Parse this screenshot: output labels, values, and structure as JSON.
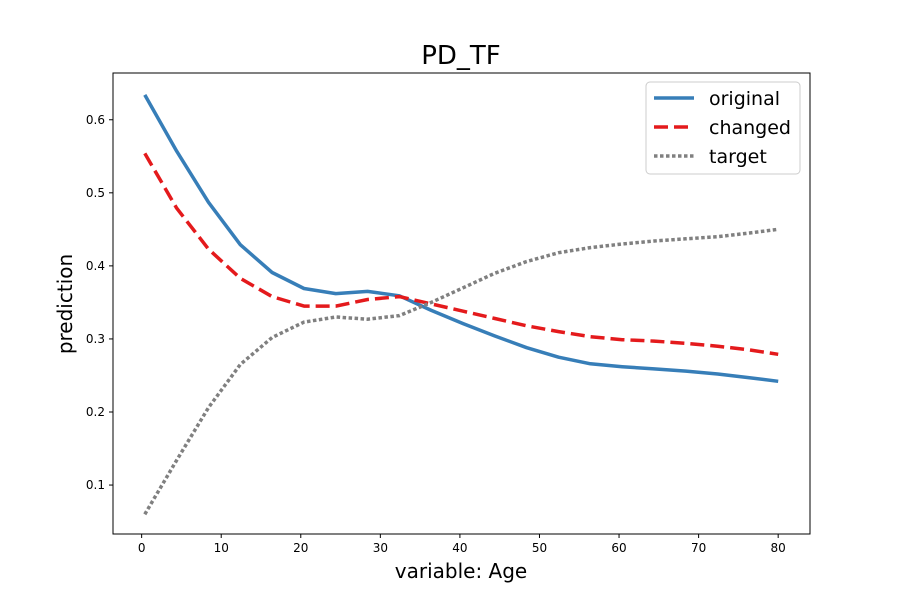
{
  "chart_data": {
    "type": "line",
    "title": "PD_TF",
    "xlabel": "variable: Age",
    "ylabel": "prediction",
    "xlim": [
      -3.6,
      84.0
    ],
    "ylim": [
      0.033,
      0.664
    ],
    "xticks": [
      0,
      10,
      20,
      30,
      40,
      50,
      60,
      70,
      80
    ],
    "yticks": [
      0.1,
      0.2,
      0.3,
      0.4,
      0.5,
      0.6
    ],
    "grid": false,
    "legend_position": "top-right",
    "series": [
      {
        "name": "original",
        "color": "#377eb8",
        "style": "solid",
        "x": [
          0.4,
          4.4,
          8.4,
          12.4,
          16.4,
          20.4,
          24.4,
          28.4,
          32.4,
          36.4,
          40.4,
          44.4,
          48.4,
          52.4,
          56.4,
          60.4,
          64.4,
          68.4,
          72.4,
          76.4,
          80.0
        ],
        "y": [
          0.634,
          0.557,
          0.487,
          0.429,
          0.391,
          0.369,
          0.362,
          0.365,
          0.359,
          0.339,
          0.321,
          0.304,
          0.288,
          0.275,
          0.266,
          0.262,
          0.259,
          0.256,
          0.252,
          0.247,
          0.242
        ]
      },
      {
        "name": "changed",
        "color": "#e41a1c",
        "style": "dashed",
        "x": [
          0.4,
          4.4,
          8.4,
          12.4,
          16.4,
          20.4,
          24.4,
          28.4,
          32.4,
          36.4,
          40.4,
          44.4,
          48.4,
          52.4,
          56.4,
          60.4,
          64.4,
          68.4,
          72.4,
          76.4,
          80.0
        ],
        "y": [
          0.554,
          0.479,
          0.423,
          0.383,
          0.358,
          0.345,
          0.345,
          0.354,
          0.358,
          0.348,
          0.338,
          0.328,
          0.318,
          0.31,
          0.303,
          0.299,
          0.297,
          0.294,
          0.29,
          0.285,
          0.279
        ]
      },
      {
        "name": "target",
        "color": "#808080",
        "style": "dotted",
        "x": [
          0.4,
          4.4,
          8.4,
          12.4,
          16.4,
          20.4,
          24.4,
          28.4,
          32.4,
          36.4,
          40.4,
          44.4,
          48.4,
          52.4,
          56.4,
          60.4,
          64.4,
          68.4,
          72.4,
          76.4,
          80.0
        ],
        "y": [
          0.06,
          0.134,
          0.206,
          0.265,
          0.302,
          0.323,
          0.33,
          0.327,
          0.332,
          0.35,
          0.37,
          0.39,
          0.406,
          0.418,
          0.425,
          0.43,
          0.434,
          0.437,
          0.44,
          0.445,
          0.45
        ]
      }
    ]
  }
}
